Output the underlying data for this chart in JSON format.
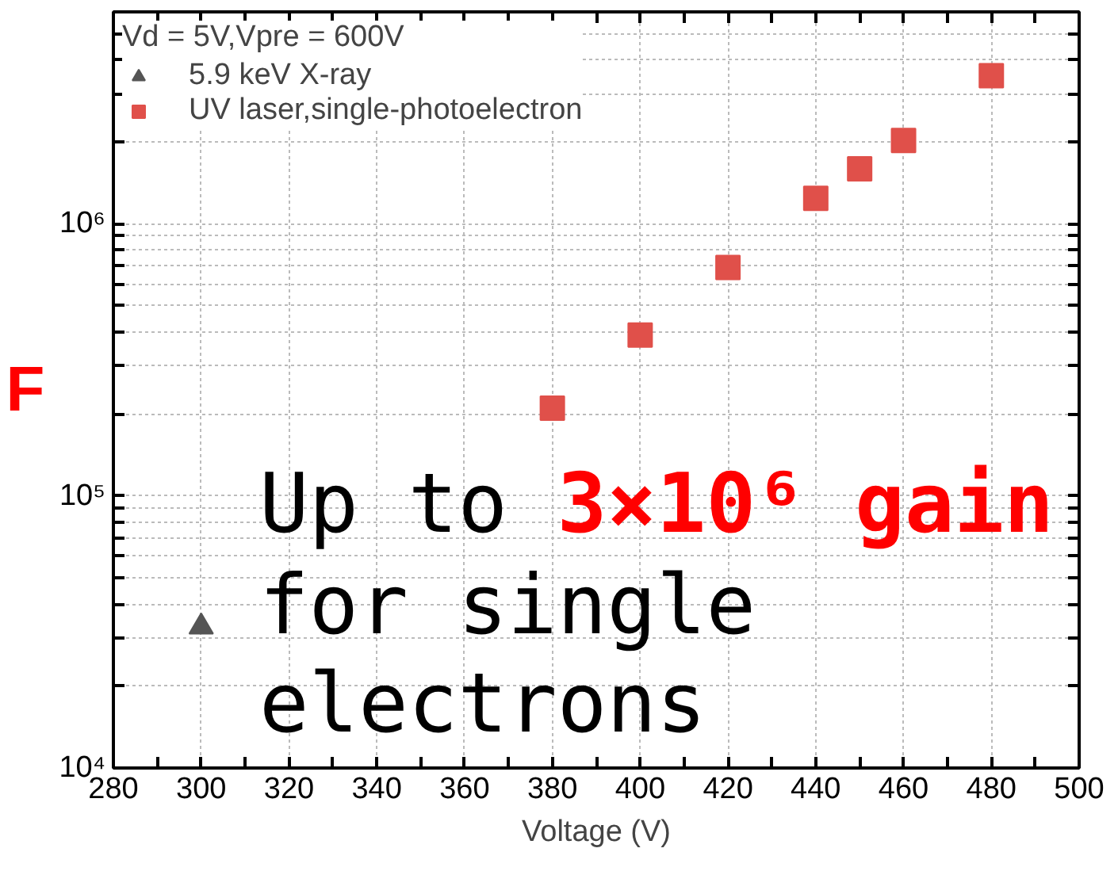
{
  "chart_data": {
    "type": "scatter",
    "xlabel": "Voltage (V)",
    "ylabel": "F",
    "legend_title": "Vd = 5V,Vpre = 600V",
    "series": [
      {
        "name": "5.9 keV X-ray",
        "color": "#555555",
        "marker": "triangle",
        "x": [
          300
        ],
        "values": [
          33000
        ]
      },
      {
        "name": "UV laser,single-photoelectron",
        "color": "#e0504a",
        "marker": "square",
        "x": [
          380,
          400,
          420,
          440,
          450,
          460,
          480
        ],
        "values": [
          210000,
          390000,
          690000,
          1240000,
          1590000,
          2020000,
          3500000
        ]
      }
    ],
    "log": "y",
    "xlim": [
      280,
      500
    ],
    "ylim": [
      10000,
      6000000
    ],
    "xticks": [
      280,
      {
        "value": 290,
        "label": null
      },
      300,
      {
        "value": 310,
        "label": null
      },
      320,
      {
        "value": 330,
        "label": null
      },
      340,
      {
        "value": 350,
        "label": null
      },
      360,
      {
        "value": 370,
        "label": null
      },
      380,
      {
        "value": 390,
        "label": null
      },
      400,
      {
        "value": 410,
        "label": null
      },
      420,
      {
        "value": 430,
        "label": null
      },
      440,
      {
        "value": 450,
        "label": null
      },
      460,
      {
        "value": 470,
        "label": null
      },
      480,
      {
        "value": 490,
        "label": null
      },
      500
    ],
    "yticks": [
      {
        "value": 10000,
        "label": "10⁴"
      },
      {
        "value": 20000,
        "label": null
      },
      {
        "value": 30000,
        "label": null
      },
      {
        "value": 40000,
        "label": null
      },
      {
        "value": 50000,
        "label": null
      },
      {
        "value": 60000,
        "label": null
      },
      {
        "value": 70000,
        "label": null
      },
      {
        "value": 80000,
        "label": null
      },
      {
        "value": 90000,
        "label": null
      },
      {
        "value": 100000,
        "label": "10⁵"
      },
      {
        "value": 200000,
        "label": null
      },
      {
        "value": 300000,
        "label": null
      },
      {
        "value": 400000,
        "label": null
      },
      {
        "value": 500000,
        "label": null
      },
      {
        "value": 600000,
        "label": null
      },
      {
        "value": 700000,
        "label": null
      },
      {
        "value": 800000,
        "label": null
      },
      {
        "value": 900000,
        "label": null
      },
      {
        "value": 1000000,
        "label": "10⁶"
      },
      {
        "value": 2000000,
        "label": null
      },
      {
        "value": 3000000,
        "label": null
      },
      {
        "value": 4000000,
        "label": null
      },
      {
        "value": 5000000,
        "label": null
      },
      {
        "value": 6000000,
        "label": null
      }
    ],
    "grid": true,
    "legend": "top left",
    "annotations": [
      "Up to ",
      "3×10⁶ gain",
      "for single",
      "electrons"
    ]
  }
}
